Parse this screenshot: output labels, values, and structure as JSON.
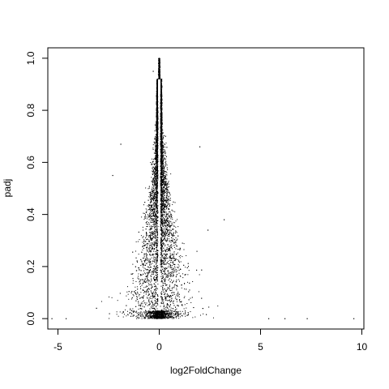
{
  "chart_data": {
    "type": "scatter",
    "title": "",
    "xlabel": "log2FoldChange",
    "ylabel": "padj",
    "xlim": [
      -5.5,
      10.1
    ],
    "ylim": [
      -0.04,
      1.04
    ],
    "x_ticks": [
      -5,
      0,
      5,
      10
    ],
    "x_tick_labels": [
      "-5",
      "0",
      "5",
      "10"
    ],
    "y_ticks": [
      0.0,
      0.2,
      0.4,
      0.6,
      0.8,
      1.0
    ],
    "y_tick_labels": [
      "0.0",
      "0.2",
      "0.4",
      "0.6",
      "0.8",
      "1.0"
    ],
    "grid": false,
    "legend": "none",
    "marker_color": "#000000",
    "distribution": {
      "description": "volcano-like: x spread widens as padj decreases; dense near 0",
      "n_points": 9000,
      "x_center": 0.0,
      "spread_at_padj_0": 2.2,
      "spread_at_padj_1": 0.03
    },
    "outliers": [
      {
        "x": -5.3,
        "y": 0.0
      },
      {
        "x": -4.6,
        "y": 0.0
      },
      {
        "x": 7.3,
        "y": 0.0
      },
      {
        "x": 9.6,
        "y": 0.0
      },
      {
        "x": 6.2,
        "y": 0.0
      },
      {
        "x": 5.4,
        "y": 0.0
      },
      {
        "x": -1.9,
        "y": 0.67
      },
      {
        "x": 2.0,
        "y": 0.66
      },
      {
        "x": -2.3,
        "y": 0.55
      },
      {
        "x": 3.2,
        "y": 0.38
      },
      {
        "x": 2.4,
        "y": 0.34
      },
      {
        "x": -0.3,
        "y": 0.95
      },
      {
        "x": 1.1,
        "y": 0.13
      },
      {
        "x": -3.1,
        "y": 0.04
      }
    ]
  }
}
